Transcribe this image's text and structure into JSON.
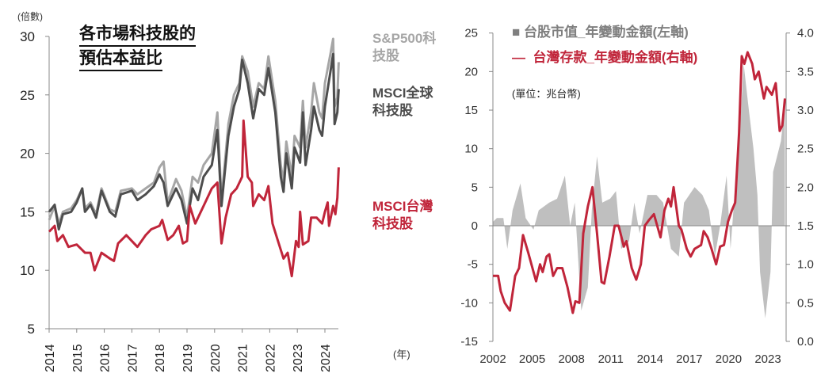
{
  "chart_data": [
    {
      "type": "line",
      "title": "各市場科技股的預估本益比",
      "title_lines": [
        "各市場科技股的",
        "預估本益比"
      ],
      "ylabel": "(倍數)",
      "xlabel": "(年)",
      "ylim": [
        5,
        30
      ],
      "xlim": [
        2014,
        2024.5
      ],
      "yticks": [
        5,
        10,
        15,
        20,
        25,
        30
      ],
      "xticks": [
        2014,
        2015,
        2016,
        2017,
        2018,
        2019,
        2020,
        2021,
        2022,
        2023,
        2024
      ],
      "grid": false,
      "legend_placement": "right",
      "series": [
        {
          "name": "S&P500科技股",
          "label_lines": [
            "S&P500科",
            "技股"
          ],
          "color": "#a6a6a6",
          "x": [
            2014.0,
            2014.2,
            2014.35,
            2014.5,
            2014.8,
            2015.0,
            2015.2,
            2015.3,
            2015.5,
            2015.7,
            2015.9,
            2016.2,
            2016.4,
            2016.6,
            2017.0,
            2017.2,
            2017.5,
            2017.8,
            2018.0,
            2018.15,
            2018.3,
            2018.6,
            2018.8,
            2019.0,
            2019.2,
            2019.4,
            2019.6,
            2019.9,
            2020.1,
            2020.25,
            2020.5,
            2020.7,
            2020.9,
            2021.0,
            2021.2,
            2021.4,
            2021.6,
            2021.8,
            2021.95,
            2022.2,
            2022.4,
            2022.5,
            2022.6,
            2022.8,
            2022.9,
            2023.1,
            2023.2,
            2023.3,
            2023.5,
            2023.6,
            2023.8,
            2023.9,
            2024.0,
            2024.2,
            2024.3,
            2024.35,
            2024.45,
            2024.5
          ],
          "values": [
            14.3,
            15.5,
            14.0,
            15.0,
            15.3,
            16.0,
            17.0,
            15.3,
            15.8,
            14.8,
            17.0,
            15.2,
            15.0,
            16.8,
            17.0,
            16.5,
            17.0,
            17.5,
            18.8,
            19.3,
            15.8,
            17.8,
            16.8,
            14.5,
            18.0,
            17.5,
            19.0,
            20.0,
            23.5,
            16.0,
            22.5,
            25.0,
            26.0,
            28.3,
            27.0,
            24.0,
            26.0,
            25.5,
            28.3,
            24.5,
            19.0,
            17.5,
            21.0,
            18.0,
            21.5,
            20.5,
            24.5,
            20.5,
            23.5,
            26.0,
            23.5,
            23.0,
            26.0,
            28.5,
            29.8,
            24.0,
            24.8,
            27.8
          ]
        },
        {
          "name": "MSCI全球科技股",
          "label_lines": [
            "MSCI全球",
            "科技股"
          ],
          "color": "#4d4d4d",
          "x": [
            2014.0,
            2014.2,
            2014.35,
            2014.5,
            2014.8,
            2015.0,
            2015.2,
            2015.3,
            2015.5,
            2015.7,
            2015.9,
            2016.2,
            2016.4,
            2016.6,
            2017.0,
            2017.2,
            2017.5,
            2017.8,
            2018.0,
            2018.15,
            2018.3,
            2018.6,
            2018.8,
            2019.0,
            2019.2,
            2019.4,
            2019.6,
            2019.9,
            2020.1,
            2020.25,
            2020.5,
            2020.7,
            2020.9,
            2021.0,
            2021.2,
            2021.4,
            2021.6,
            2021.8,
            2021.95,
            2022.2,
            2022.4,
            2022.5,
            2022.6,
            2022.8,
            2022.9,
            2023.1,
            2023.2,
            2023.3,
            2023.5,
            2023.6,
            2023.8,
            2023.9,
            2024.0,
            2024.2,
            2024.3,
            2024.35,
            2024.45,
            2024.5
          ],
          "values": [
            15.0,
            15.6,
            13.5,
            14.8,
            15.0,
            15.8,
            17.0,
            15.0,
            15.6,
            14.5,
            16.8,
            15.0,
            14.6,
            16.5,
            16.8,
            16.0,
            16.5,
            17.2,
            18.2,
            17.5,
            15.5,
            17.0,
            16.0,
            14.0,
            17.0,
            16.0,
            18.0,
            19.0,
            22.0,
            15.5,
            21.5,
            24.0,
            25.5,
            28.0,
            26.0,
            23.0,
            25.5,
            25.0,
            27.3,
            23.5,
            18.0,
            16.7,
            20.0,
            17.0,
            20.5,
            19.2,
            23.5,
            19.0,
            22.0,
            24.0,
            22.0,
            21.5,
            24.0,
            27.0,
            28.5,
            22.5,
            23.5,
            25.5
          ]
        },
        {
          "name": "MSCI台灣科技股",
          "label_lines": [
            "MSCI台灣",
            "科技股"
          ],
          "color": "#c0253a",
          "x": [
            2014.0,
            2014.2,
            2014.3,
            2014.5,
            2014.7,
            2015.0,
            2015.3,
            2015.5,
            2015.65,
            2015.9,
            2016.2,
            2016.35,
            2016.5,
            2016.8,
            2017.0,
            2017.2,
            2017.5,
            2017.7,
            2018.0,
            2018.1,
            2018.3,
            2018.5,
            2018.7,
            2018.85,
            2019.0,
            2019.1,
            2019.3,
            2019.6,
            2019.9,
            2020.1,
            2020.25,
            2020.4,
            2020.6,
            2020.8,
            2021.0,
            2021.05,
            2021.2,
            2021.35,
            2021.4,
            2021.6,
            2021.8,
            2021.95,
            2022.1,
            2022.3,
            2022.5,
            2022.65,
            2022.8,
            2022.95,
            2023.05,
            2023.1,
            2023.2,
            2023.4,
            2023.5,
            2023.7,
            2023.9,
            2024.0,
            2024.1,
            2024.15,
            2024.3,
            2024.38,
            2024.45,
            2024.5
          ],
          "values": [
            13.3,
            13.8,
            12.5,
            13.0,
            12.0,
            12.2,
            11.5,
            11.5,
            10.0,
            11.5,
            11.0,
            10.8,
            12.3,
            13.0,
            12.5,
            12.0,
            13.0,
            13.5,
            13.8,
            14.3,
            12.6,
            13.0,
            13.8,
            12.3,
            12.5,
            15.5,
            14.0,
            15.5,
            17.0,
            17.5,
            12.3,
            14.5,
            16.5,
            17.0,
            18.0,
            22.8,
            18.0,
            17.5,
            15.5,
            16.5,
            16.0,
            17.2,
            14.0,
            12.5,
            11.0,
            11.5,
            9.5,
            12.5,
            12.0,
            15.0,
            12.2,
            12.5,
            14.5,
            14.5,
            14.0,
            15.0,
            15.8,
            13.8,
            15.5,
            14.8,
            16.2,
            18.8
          ]
        }
      ]
    },
    {
      "type": "area+line",
      "unit_note": "(單位：兆台幣)",
      "xlim": [
        2002,
        2024.3
      ],
      "xticks": [
        2002,
        2005,
        2008,
        2011,
        2014,
        2017,
        2020,
        2023
      ],
      "ylim_left": [
        -15,
        25
      ],
      "yticks_left": [
        -15,
        -10,
        -5,
        0,
        5,
        10,
        15,
        20,
        25
      ],
      "ylim_right": [
        0.0,
        4.0
      ],
      "yticks_right": [
        "0.0",
        "0.5",
        "1.0",
        "1.5",
        "2.0",
        "2.5",
        "3.0",
        "3.5",
        "4.0"
      ],
      "grid": false,
      "legend_placement": "top-left",
      "series": [
        {
          "name": "台股市值_年變動金額(左軸)",
          "legend_marker": "■",
          "type": "area",
          "axis": "left",
          "color": "#bfbfbf",
          "x": [
            2002.0,
            2002.3,
            2002.8,
            2003.1,
            2003.5,
            2004.1,
            2004.5,
            2005.1,
            2005.5,
            2006.3,
            2006.9,
            2007.5,
            2007.9,
            2008.25,
            2008.75,
            2009.25,
            2009.55,
            2009.95,
            2010.35,
            2010.95,
            2011.4,
            2011.8,
            2012.4,
            2012.8,
            2013.2,
            2013.8,
            2014.5,
            2015.0,
            2015.6,
            2016.2,
            2016.6,
            2017.4,
            2018.0,
            2018.5,
            2018.95,
            2019.35,
            2019.85,
            2020.15,
            2020.45,
            2020.85,
            2021.15,
            2021.55,
            2021.9,
            2022.2,
            2022.4,
            2022.8,
            2023.2,
            2023.4,
            2023.7,
            2024.0,
            2024.3
          ],
          "values": [
            0.5,
            1,
            1,
            -3,
            2,
            5.5,
            1,
            -0.5,
            2,
            3,
            3.5,
            6.5,
            0,
            3,
            -11,
            -8,
            2,
            9,
            3,
            3.5,
            4.5,
            -3,
            -2,
            3,
            -1,
            4,
            4,
            3,
            -3,
            -4,
            3,
            5,
            4,
            2,
            -4,
            0,
            6.5,
            -3,
            4,
            12,
            21,
            15,
            10,
            4,
            -6,
            -12,
            -6,
            7,
            9,
            11,
            16
          ]
        },
        {
          "name": "台灣存款_年變動金額(右軸)",
          "legend_marker": "—",
          "type": "line",
          "axis": "right",
          "color": "#c0253a",
          "x": [
            2002.0,
            2002.4,
            2002.6,
            2002.9,
            2003.3,
            2003.7,
            2004.0,
            2004.3,
            2004.7,
            2005.3,
            2005.6,
            2005.8,
            2006.1,
            2006.3,
            2006.6,
            2006.9,
            2007.3,
            2007.7,
            2008.1,
            2008.3,
            2008.6,
            2008.9,
            2009.25,
            2009.6,
            2009.95,
            2010.3,
            2010.5,
            2010.9,
            2011.3,
            2011.6,
            2012.0,
            2012.2,
            2012.6,
            2012.95,
            2013.3,
            2013.6,
            2013.9,
            2014.3,
            2014.8,
            2015.1,
            2015.4,
            2015.6,
            2015.8,
            2016.2,
            2016.4,
            2016.8,
            2017.1,
            2017.4,
            2017.9,
            2018.1,
            2018.4,
            2018.7,
            2019.05,
            2019.35,
            2019.65,
            2019.95,
            2020.25,
            2020.5,
            2020.8,
            2021.0,
            2021.2,
            2021.45,
            2021.8,
            2022.0,
            2022.3,
            2022.7,
            2022.9,
            2023.3,
            2023.6,
            2023.9,
            2024.1,
            2024.3
          ],
          "values": [
            0.85,
            0.85,
            0.65,
            0.5,
            0.4,
            0.85,
            0.95,
            1.38,
            1.15,
            0.78,
            1.0,
            0.9,
            1.1,
            1.13,
            0.85,
            0.95,
            0.95,
            0.7,
            0.37,
            0.52,
            0.5,
            1.4,
            1.75,
            2.0,
            1.4,
            0.77,
            0.75,
            1.1,
            1.5,
            1.5,
            1.23,
            1.3,
            0.95,
            0.8,
            1.0,
            1.5,
            1.57,
            1.65,
            1.35,
            1.7,
            1.85,
            1.75,
            2.0,
            1.5,
            1.45,
            1.2,
            1.1,
            1.2,
            1.25,
            1.43,
            1.35,
            1.2,
            1.0,
            1.23,
            1.25,
            1.55,
            1.7,
            1.8,
            2.7,
            3.7,
            3.6,
            3.75,
            3.6,
            3.4,
            3.5,
            3.15,
            3.3,
            3.2,
            3.35,
            2.73,
            2.8,
            3.15
          ]
        }
      ]
    }
  ]
}
